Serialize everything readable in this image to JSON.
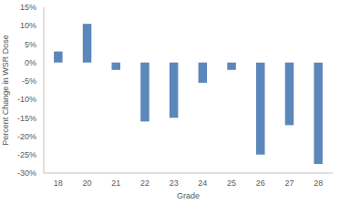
{
  "chart_data": {
    "type": "bar",
    "categories": [
      "18",
      "20",
      "21",
      "22",
      "23",
      "24",
      "25",
      "26",
      "27",
      "28"
    ],
    "values": [
      3,
      10.5,
      -2,
      -16,
      -15,
      -5.5,
      -2,
      -25,
      -17,
      -27.5
    ],
    "color": "#5b87ba",
    "x_label": "Grade",
    "y_label": "Percent Change in WSR Dose",
    "ylim": [
      -30,
      15
    ],
    "yticks": [
      {
        "value": -30,
        "label": "-30%"
      },
      {
        "value": -25,
        "label": "-25%"
      },
      {
        "value": -20,
        "label": "-20%"
      },
      {
        "value": -15,
        "label": "-15%"
      },
      {
        "value": -10,
        "label": "-10%"
      },
      {
        "value": -5,
        "label": "-5%"
      },
      {
        "value": 0,
        "label": "0%"
      },
      {
        "value": 5,
        "label": "5%"
      },
      {
        "value": 10,
        "label": "10%"
      },
      {
        "value": 15,
        "label": "15%"
      }
    ],
    "grid": false
  }
}
